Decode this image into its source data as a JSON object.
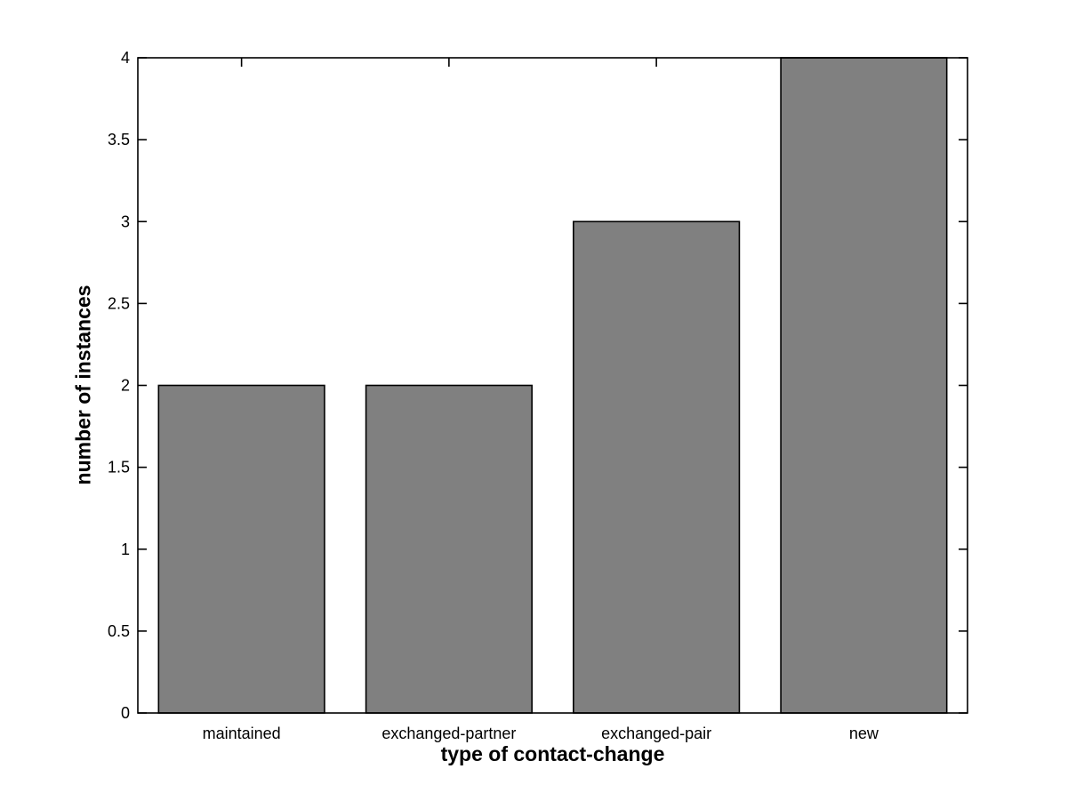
{
  "figure": {
    "background": "#ffffff"
  },
  "chart_data": {
    "type": "bar",
    "title": "",
    "xlabel": "type of contact-change",
    "ylabel": "number of instances",
    "categories": [
      "maintained",
      "exchanged-partner",
      "exchanged-pair",
      "new"
    ],
    "values": [
      2,
      2,
      3,
      4
    ],
    "xlim": [
      0.5,
      4.5
    ],
    "ylim": [
      0,
      4
    ],
    "yticks": [
      0,
      0.5,
      1,
      1.5,
      2,
      2.5,
      3,
      3.5,
      4
    ],
    "ytick_labels": [
      "0",
      "0.5",
      "1",
      "1.5",
      "2",
      "2.5",
      "3",
      "3.5",
      "4"
    ],
    "bar_width_fraction": 0.8,
    "bar_color": "#808080",
    "bar_edge_color": "#000000",
    "axis_color": "#000000",
    "text_color": "#000000",
    "grid": false,
    "legend": null
  }
}
